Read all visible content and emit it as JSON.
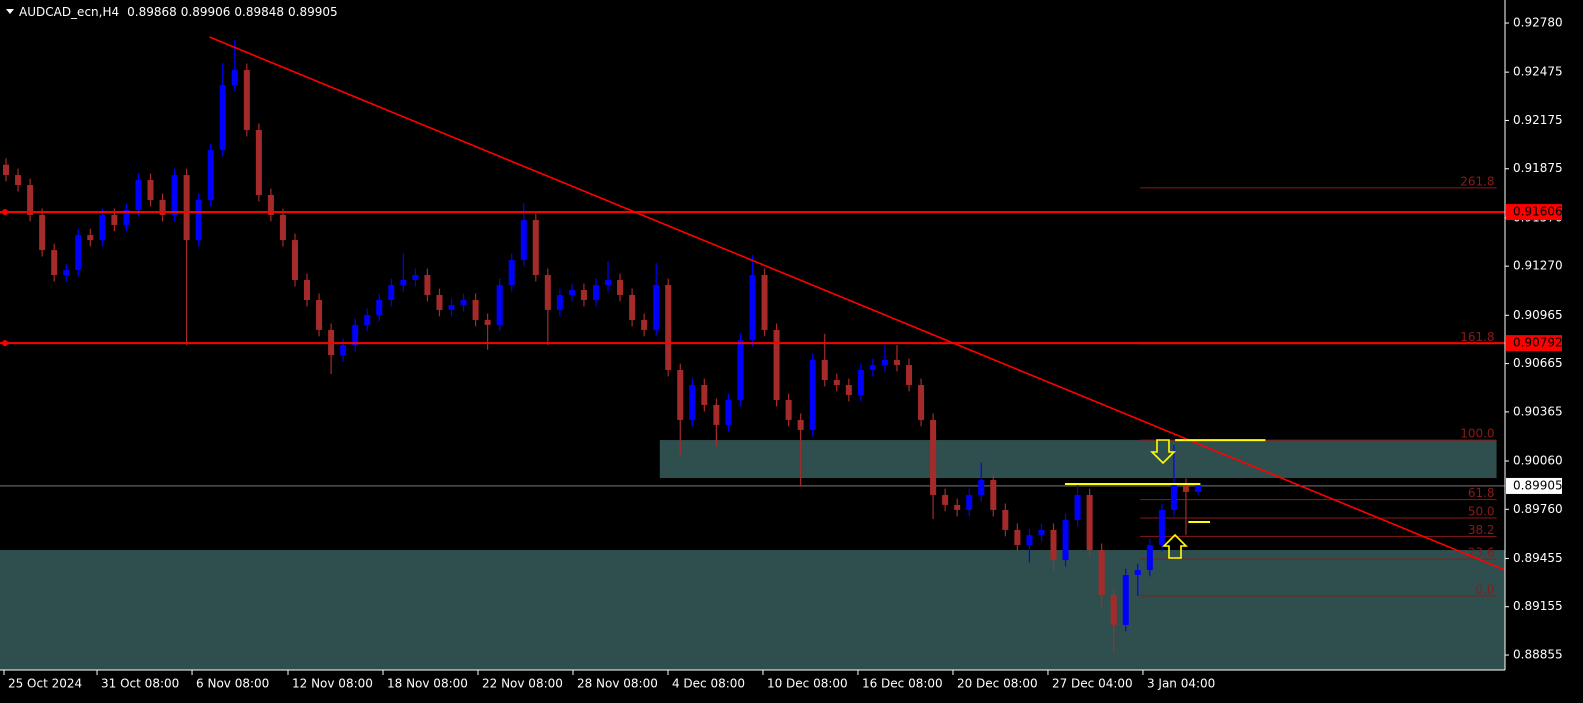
{
  "chart_data": {
    "type": "candlestick",
    "symbol": "AUDCAD_ecn,H4",
    "quote": [
      0.89868,
      0.89906,
      0.89848,
      0.89905
    ],
    "up_color": "#0000ff",
    "down_color": "#a52a2a",
    "xlim": [
      -0.5,
      124.5
    ],
    "ylim": [
      0.88762,
      0.92923
    ],
    "yticks": [
      {
        "value": 0.9278,
        "label": "0.92780"
      },
      0.92475,
      0.92175,
      0.91875,
      {
        "value": 0.9157,
        "label": "0.91570"
      },
      {
        "value": 0.9127,
        "label": "0.91270"
      },
      0.90965,
      0.90665,
      0.90365,
      {
        "value": 0.9006,
        "label": "0.90060"
      },
      {
        "value": 0.8976,
        "label": "0.89760"
      },
      0.89455,
      0.89155,
      0.88855
    ],
    "xticks": [
      {
        "value": -0.17,
        "label": "25 Oct 2024"
      },
      {
        "value": 7.56,
        "label": "31 Oct 08:00"
      },
      {
        "value": 15.45,
        "label": "6 Nov 08:00"
      },
      {
        "value": 23.42,
        "label": "12 Nov 08:00"
      },
      {
        "value": 31.31,
        "label": "18 Nov 08:00"
      },
      {
        "value": 39.2,
        "label": "22 Nov 08:00"
      },
      {
        "value": 47.09,
        "label": "28 Nov 08:00"
      },
      {
        "value": 54.98,
        "label": "4 Dec 08:00"
      },
      {
        "value": 62.87,
        "label": "10 Dec 08:00"
      },
      {
        "value": 70.76,
        "label": "16 Dec 08:00"
      },
      {
        "value": 78.65,
        "label": "20 Dec 08:00"
      },
      {
        "value": 86.54,
        "label": "27 Dec 04:00"
      },
      {
        "value": 94.43,
        "label": "3 Jan 04:00"
      }
    ],
    "candles": [
      [
        0.919,
        0.9194,
        0.91796,
        0.91836
      ],
      [
        0.91836,
        0.91876,
        0.91734,
        0.91774
      ],
      [
        0.91774,
        0.91814,
        0.91548,
        0.91588
      ],
      [
        0.91588,
        0.91628,
        0.9133,
        0.9137
      ],
      [
        0.9137,
        0.9141,
        0.91175,
        0.91215
      ],
      [
        0.91215,
        0.91286,
        0.91175,
        0.91246
      ],
      [
        0.91246,
        0.91503,
        0.91206,
        0.91463
      ],
      [
        0.91463,
        0.91503,
        0.91392,
        0.91432
      ],
      [
        0.91432,
        0.91628,
        0.91392,
        0.91588
      ],
      [
        0.91588,
        0.91628,
        0.91486,
        0.91526
      ],
      [
        0.91526,
        0.91659,
        0.91486,
        0.91619
      ],
      [
        0.91619,
        0.91845,
        0.91579,
        0.91805
      ],
      [
        0.91805,
        0.91845,
        0.91641,
        0.91681
      ],
      [
        0.91681,
        0.91721,
        0.91548,
        0.91588
      ],
      [
        0.91588,
        0.91876,
        0.91548,
        0.91836
      ],
      [
        0.91836,
        0.91876,
        0.9078,
        0.91432
      ],
      [
        0.91432,
        0.91721,
        0.91392,
        0.91681
      ],
      [
        0.91681,
        0.92031,
        0.91641,
        0.91991
      ],
      [
        0.91991,
        0.92531,
        0.91951,
        0.92395
      ],
      [
        0.92395,
        0.92674,
        0.92355,
        0.92488
      ],
      [
        0.92488,
        0.92528,
        0.92076,
        0.92116
      ],
      [
        0.92116,
        0.92156,
        0.91672,
        0.91712
      ],
      [
        0.91712,
        0.91752,
        0.91548,
        0.91588
      ],
      [
        0.91588,
        0.91628,
        0.91392,
        0.91432
      ],
      [
        0.91432,
        0.91472,
        0.91144,
        0.91184
      ],
      [
        0.91184,
        0.91224,
        0.9102,
        0.9106
      ],
      [
        0.9106,
        0.911,
        0.90834,
        0.90874
      ],
      [
        0.90874,
        0.90914,
        0.906,
        0.90718
      ],
      [
        0.90718,
        0.9082,
        0.90678,
        0.9078
      ],
      [
        0.9078,
        0.90945,
        0.9074,
        0.90905
      ],
      [
        0.90905,
        0.91007,
        0.90865,
        0.90967
      ],
      [
        0.90967,
        0.911,
        0.90927,
        0.9106
      ],
      [
        0.9106,
        0.91193,
        0.9102,
        0.91153
      ],
      [
        0.91153,
        0.9135,
        0.91113,
        0.91184
      ],
      [
        0.91184,
        0.91255,
        0.91144,
        0.91215
      ],
      [
        0.91215,
        0.91255,
        0.91051,
        0.91091
      ],
      [
        0.91091,
        0.91131,
        0.90958,
        0.90998
      ],
      [
        0.90998,
        0.91069,
        0.90958,
        0.91029
      ],
      [
        0.91029,
        0.911,
        0.90989,
        0.9106
      ],
      [
        0.9106,
        0.911,
        0.90896,
        0.90936
      ],
      [
        0.90936,
        0.90976,
        0.9075,
        0.90905
      ],
      [
        0.90905,
        0.91193,
        0.90865,
        0.91153
      ],
      [
        0.91153,
        0.91348,
        0.91113,
        0.91308
      ],
      [
        0.91308,
        0.9166,
        0.91268,
        0.91557
      ],
      [
        0.91557,
        0.91597,
        0.91175,
        0.91215
      ],
      [
        0.91215,
        0.91255,
        0.9078,
        0.90998
      ],
      [
        0.90998,
        0.91131,
        0.90958,
        0.91091
      ],
      [
        0.91091,
        0.91162,
        0.91051,
        0.91122
      ],
      [
        0.91122,
        0.91162,
        0.9102,
        0.9106
      ],
      [
        0.9106,
        0.91193,
        0.9102,
        0.91153
      ],
      [
        0.91153,
        0.913,
        0.91113,
        0.91184
      ],
      [
        0.91184,
        0.91224,
        0.91051,
        0.91091
      ],
      [
        0.91091,
        0.91131,
        0.90896,
        0.90936
      ],
      [
        0.90936,
        0.90976,
        0.90834,
        0.90874
      ],
      [
        0.90874,
        0.9129,
        0.90834,
        0.91153
      ],
      [
        0.91153,
        0.91193,
        0.90585,
        0.90625
      ],
      [
        0.90625,
        0.90665,
        0.901,
        0.90315
      ],
      [
        0.90315,
        0.90572,
        0.90275,
        0.90532
      ],
      [
        0.90532,
        0.90572,
        0.90368,
        0.90408
      ],
      [
        0.90408,
        0.90448,
        0.9015,
        0.90284
      ],
      [
        0.90284,
        0.90479,
        0.90244,
        0.90439
      ],
      [
        0.90439,
        0.90851,
        0.90399,
        0.90811
      ],
      [
        0.90811,
        0.9134,
        0.90771,
        0.91215
      ],
      [
        0.91215,
        0.91255,
        0.90834,
        0.90874
      ],
      [
        0.90874,
        0.90914,
        0.90399,
        0.90439
      ],
      [
        0.90439,
        0.90479,
        0.90275,
        0.90315
      ],
      [
        0.90315,
        0.90355,
        0.899,
        0.90253
      ],
      [
        0.90253,
        0.90727,
        0.90213,
        0.90687
      ],
      [
        0.90687,
        0.9085,
        0.90523,
        0.90563
      ],
      [
        0.90563,
        0.90603,
        0.90492,
        0.90532
      ],
      [
        0.90532,
        0.90572,
        0.9043,
        0.9047
      ],
      [
        0.9047,
        0.90665,
        0.9043,
        0.90625
      ],
      [
        0.90625,
        0.90696,
        0.90585,
        0.90656
      ],
      [
        0.90656,
        0.9078,
        0.90616,
        0.90687
      ],
      [
        0.90687,
        0.9078,
        0.90616,
        0.90656
      ],
      [
        0.90656,
        0.90696,
        0.90492,
        0.90532
      ],
      [
        0.90532,
        0.90572,
        0.90275,
        0.90315
      ],
      [
        0.90315,
        0.90355,
        0.897,
        0.89849
      ],
      [
        0.89849,
        0.89889,
        0.89747,
        0.89787
      ],
      [
        0.89787,
        0.89827,
        0.89716,
        0.89756
      ],
      [
        0.89756,
        0.89889,
        0.89716,
        0.89849
      ],
      [
        0.89849,
        0.9005,
        0.89809,
        0.89942
      ],
      [
        0.89942,
        0.89982,
        0.89716,
        0.89756
      ],
      [
        0.89756,
        0.89796,
        0.89592,
        0.89632
      ],
      [
        0.89632,
        0.89672,
        0.89498,
        0.89538
      ],
      [
        0.89538,
        0.8964,
        0.8943,
        0.896
      ],
      [
        0.896,
        0.89672,
        0.8956,
        0.89632
      ],
      [
        0.89632,
        0.89672,
        0.8938,
        0.89445
      ],
      [
        0.89445,
        0.89734,
        0.89405,
        0.89694
      ],
      [
        0.89694,
        0.8991,
        0.89654,
        0.89849
      ],
      [
        0.89849,
        0.89889,
        0.89467,
        0.89507
      ],
      [
        0.89507,
        0.89547,
        0.8915,
        0.89228
      ],
      [
        0.89228,
        0.89268,
        0.8887,
        0.89042
      ],
      [
        0.89042,
        0.89392,
        0.89002,
        0.89352
      ],
      [
        0.89352,
        0.89423,
        0.89222,
        0.89383
      ],
      [
        0.89383,
        0.89578,
        0.89343,
        0.89538
      ],
      [
        0.89538,
        0.89796,
        0.89498,
        0.89756
      ],
      [
        0.89756,
        0.9016,
        0.89716,
        0.89911
      ],
      [
        0.89911,
        0.89951,
        0.896,
        0.89868
      ],
      [
        0.89868,
        0.89906,
        0.89848,
        0.89905
      ]
    ],
    "zones": [
      {
        "x": [
          54.3,
          123.8
        ],
        "y": [
          0.89954,
          0.9019
        ],
        "color": "#2f4f4f"
      },
      {
        "x": [
          -0.5,
          124.5
        ],
        "y": [
          0.88762,
          0.89507
        ],
        "color": "#2f4f4f"
      }
    ],
    "hlines": [
      {
        "value": 0.91606,
        "color": "#ff0000"
      },
      {
        "value": 0.90792,
        "color": "#ff0000"
      }
    ],
    "last_price": {
      "value": 0.89905,
      "color": "#c0c0c0"
    },
    "trendline": {
      "x": [
        16.9,
        124.5
      ],
      "y": [
        0.92693,
        0.89383
      ],
      "color": "#ff0000"
    },
    "segments": [
      {
        "x": [
          87.95,
          99.2
        ],
        "y": 0.89917,
        "color": "#ffff00"
      },
      {
        "x": [
          97.1,
          104.6
        ],
        "y": 0.9019,
        "color": "#ffff00"
      },
      {
        "x": [
          98.2,
          100.0
        ],
        "y": 0.89681,
        "color": "#ffff00"
      }
    ],
    "fibonacci": {
      "x": [
        94.2,
        123.8
      ],
      "price0": 0.89222,
      "price100": 0.9019,
      "color": "#8b1a1a",
      "levels": [
        {
          "value": 0,
          "label": "0.0"
        },
        23.6,
        38.2,
        {
          "value": 50,
          "label": "50.0"
        },
        61.8,
        {
          "value": 100,
          "label": "100.0"
        },
        161.8,
        261.8
      ]
    }
  }
}
